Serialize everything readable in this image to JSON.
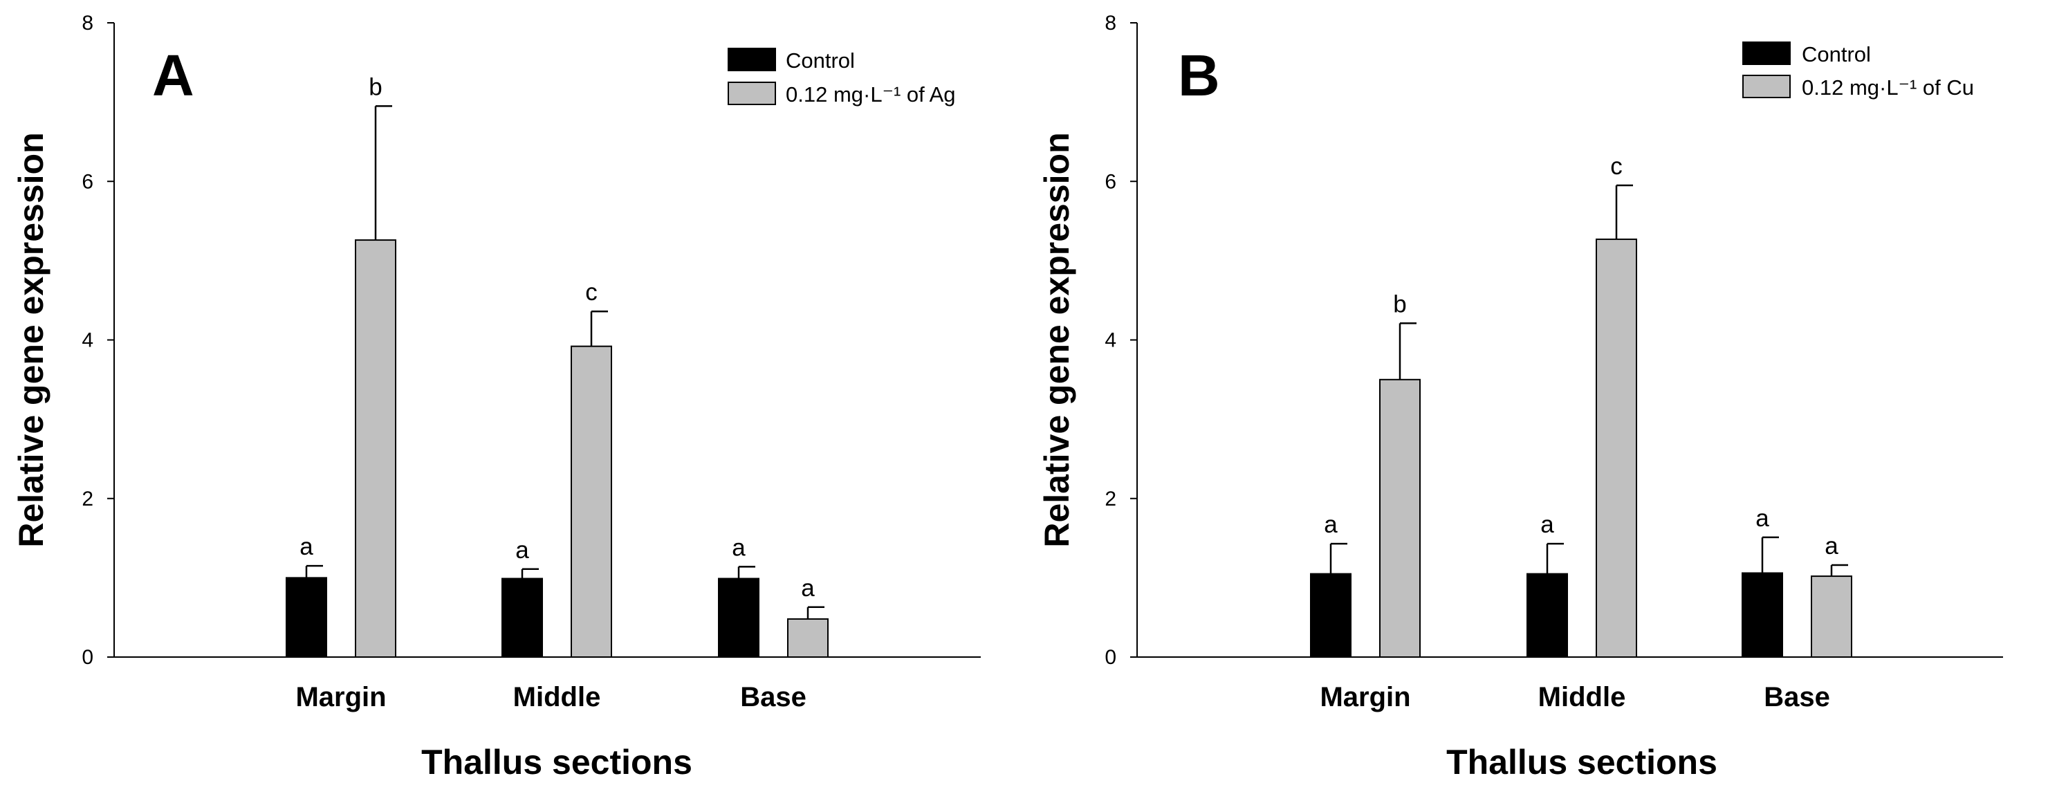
{
  "chart_data": [
    {
      "type": "bar",
      "panel": "A",
      "title": "",
      "xlabel": "Thallus sections",
      "ylabel": "Relative gene expression",
      "ylim": [
        0,
        8
      ],
      "yticks": [
        "0",
        "2",
        "4",
        "6",
        "8"
      ],
      "categories": [
        "Margin",
        "Middle",
        "Base"
      ],
      "series": [
        {
          "name": "Control",
          "color": "#000000",
          "values": [
            1.0,
            0.99,
            0.99
          ],
          "errors": [
            0.15,
            0.12,
            0.15
          ],
          "labels": [
            "a",
            "a",
            "a"
          ]
        },
        {
          "name": "0.12 mg·L⁻¹ of Ag",
          "color": "#c0c0c0",
          "values": [
            5.26,
            3.92,
            0.48
          ],
          "errors": [
            1.69,
            0.44,
            0.15
          ],
          "labels": [
            "b",
            "c",
            "a"
          ]
        }
      ],
      "legend": "top-right"
    },
    {
      "type": "bar",
      "panel": "B",
      "title": "",
      "xlabel": "Thallus sections",
      "ylabel": "Relative gene expression",
      "ylim": [
        0,
        8
      ],
      "yticks": [
        "0",
        "2",
        "4",
        "6",
        "8"
      ],
      "categories": [
        "Margin",
        "Middle",
        "Base"
      ],
      "series": [
        {
          "name": "Control",
          "color": "#000000",
          "values": [
            1.05,
            1.05,
            1.06
          ],
          "errors": [
            0.38,
            0.38,
            0.45
          ],
          "labels": [
            "a",
            "a",
            "a"
          ]
        },
        {
          "name": "0.12 mg·L⁻¹ of Cu",
          "color": "#c0c0c0",
          "values": [
            3.5,
            5.27,
            1.02
          ],
          "errors": [
            0.71,
            0.68,
            0.14
          ],
          "labels": [
            "b",
            "c",
            "a"
          ]
        }
      ],
      "legend": "top-right"
    }
  ]
}
